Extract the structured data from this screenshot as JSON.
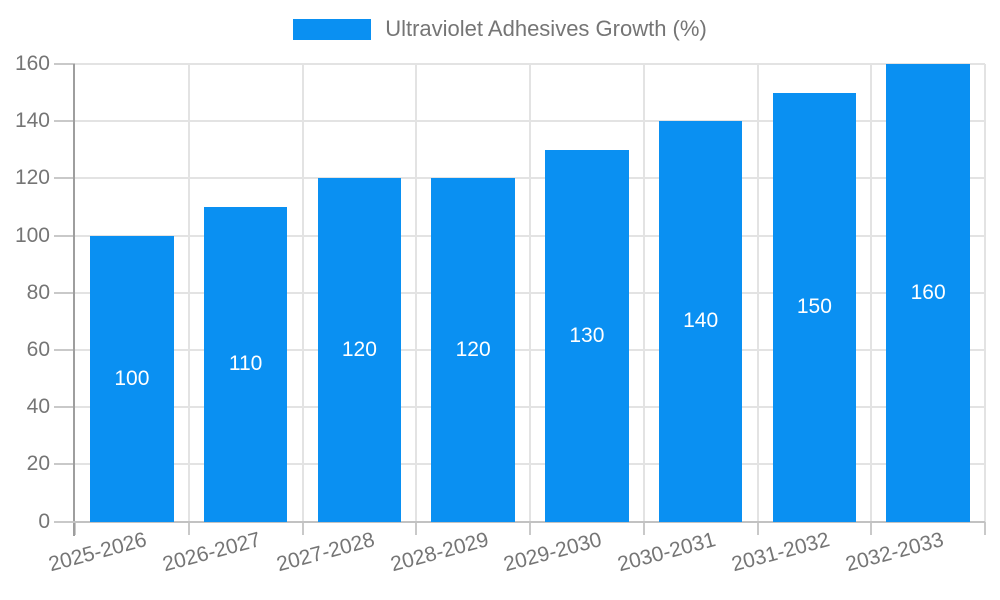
{
  "legend": {
    "label": "Ultraviolet Adhesives Growth (%)"
  },
  "chart_data": {
    "type": "bar",
    "title": "",
    "series_name": "Ultraviolet Adhesives Growth (%)",
    "categories": [
      "2025-2026",
      "2026-2027",
      "2027-2028",
      "2028-2029",
      "2029-2030",
      "2030-2031",
      "2031-2032",
      "2032-2033"
    ],
    "values": [
      100,
      110,
      120,
      120,
      130,
      140,
      150,
      160
    ],
    "value_labels": [
      "100",
      "110",
      "120",
      "120",
      "130",
      "140",
      "150",
      "160"
    ],
    "ylim": [
      0,
      160
    ],
    "yticks": [
      0,
      20,
      40,
      60,
      80,
      100,
      120,
      140,
      160
    ],
    "ytick_labels": [
      "0",
      "20",
      "40",
      "60",
      "80",
      "100",
      "120",
      "140",
      "160"
    ],
    "xlabel": "",
    "ylabel": "",
    "grid": true,
    "legend_position": "top-center",
    "colors": {
      "bar": "#0a90f2",
      "value_label": "#ffffff",
      "axis_text": "#757575",
      "gridline": "#e3e3e3",
      "y_axis_line": "#9e9e9e",
      "x_axis_line": "#c2c2c2",
      "background": "#ffffff"
    }
  }
}
